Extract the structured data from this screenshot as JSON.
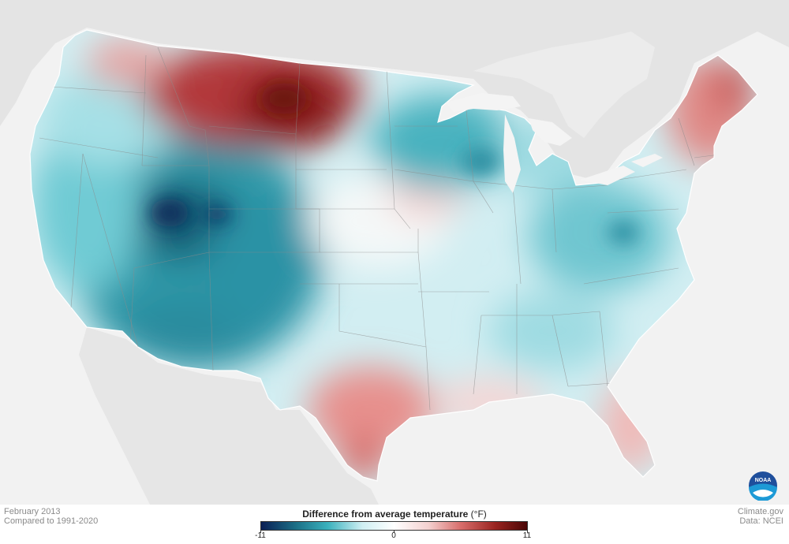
{
  "meta": {
    "month": "February 2013",
    "baseline": "Compared to 1991-2020",
    "source_site": "Climate.gov",
    "source_data": "Data: NCEI"
  },
  "legend": {
    "title": "Difference from average temperature",
    "unit": "(°F)",
    "min_label": "-11",
    "mid_label": "0",
    "max_label": "11",
    "colors": [
      "#0b1f55",
      "#1b6f86",
      "#3ab1bd",
      "#cfeff3",
      "#ffffff",
      "#f4d0cf",
      "#d86e6c",
      "#9a2420",
      "#4a0606"
    ]
  },
  "logo": {
    "text": "NOAA",
    "icon": "noaa-logo-icon"
  }
}
